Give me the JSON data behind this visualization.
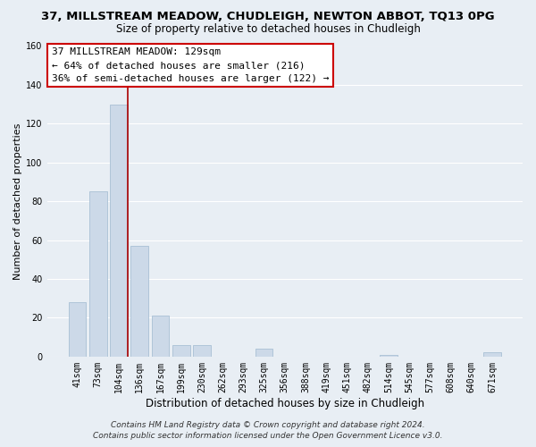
{
  "title": "37, MILLSTREAM MEADOW, CHUDLEIGH, NEWTON ABBOT, TQ13 0PG",
  "subtitle": "Size of property relative to detached houses in Chudleigh",
  "xlabel": "Distribution of detached houses by size in Chudleigh",
  "ylabel": "Number of detached properties",
  "bar_labels": [
    "41sqm",
    "73sqm",
    "104sqm",
    "136sqm",
    "167sqm",
    "199sqm",
    "230sqm",
    "262sqm",
    "293sqm",
    "325sqm",
    "356sqm",
    "388sqm",
    "419sqm",
    "451sqm",
    "482sqm",
    "514sqm",
    "545sqm",
    "577sqm",
    "608sqm",
    "640sqm",
    "671sqm"
  ],
  "bar_values": [
    28,
    85,
    130,
    57,
    21,
    6,
    6,
    0,
    0,
    4,
    0,
    0,
    0,
    0,
    0,
    1,
    0,
    0,
    0,
    0,
    2
  ],
  "bar_color": "#ccd9e8",
  "bar_edge_color": "#a8c0d4",
  "vline_color": "#aa0000",
  "ylim": [
    0,
    160
  ],
  "yticks": [
    0,
    20,
    40,
    60,
    80,
    100,
    120,
    140,
    160
  ],
  "annotation_line1": "37 MILLSTREAM MEADOW: 129sqm",
  "annotation_line2": "← 64% of detached houses are smaller (216)",
  "annotation_line3": "36% of semi-detached houses are larger (122) →",
  "annotation_box_facecolor": "#ffffff",
  "annotation_box_edgecolor": "#cc0000",
  "footer_line1": "Contains HM Land Registry data © Crown copyright and database right 2024.",
  "footer_line2": "Contains public sector information licensed under the Open Government Licence v3.0.",
  "background_color": "#e8eef4",
  "grid_color": "#ffffff",
  "title_fontsize": 9.5,
  "subtitle_fontsize": 8.5,
  "xlabel_fontsize": 8.5,
  "ylabel_fontsize": 8,
  "tick_fontsize": 7,
  "annotation_fontsize": 8,
  "footer_fontsize": 6.5
}
